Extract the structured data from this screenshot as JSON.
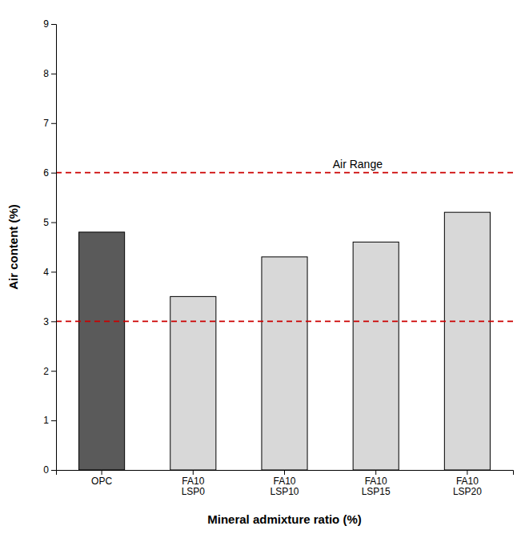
{
  "chart_data": {
    "type": "bar",
    "categories": [
      "OPC",
      "FA10\nLSP0",
      "FA10\nLSP10",
      "FA10\nLSP15",
      "FA10\nLSP20"
    ],
    "values": [
      4.8,
      3.5,
      4.3,
      4.6,
      5.2
    ],
    "colors": [
      "#5a5a5a",
      "#d8d8d8",
      "#d8d8d8",
      "#d8d8d8",
      "#d8d8d8"
    ],
    "xlabel": "Mineral admixture ratio (%)",
    "ylabel": "Air content (%)",
    "ylim": [
      0,
      9
    ],
    "yticks": [
      0,
      1,
      2,
      3,
      4,
      5,
      6,
      7,
      8,
      9
    ],
    "grid": false,
    "reference_lines": {
      "values": [
        3.0,
        6.0
      ],
      "color": "#cc0000",
      "line_style": "dashed"
    },
    "annotations": [
      "Air Range"
    ]
  }
}
